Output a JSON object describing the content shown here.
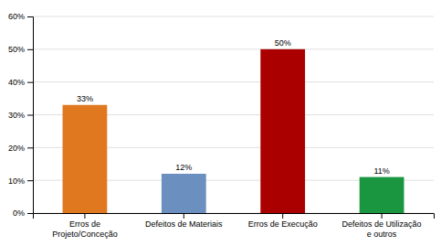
{
  "chart_data": {
    "type": "bar",
    "categories": [
      "Erros de\nProjeto/Conceção",
      "Defeitos de Materiais",
      "Erros de Execução",
      "Defeitos de Utilização\ne outros"
    ],
    "values": [
      33,
      12,
      50,
      11
    ],
    "value_labels": [
      "33%",
      "12%",
      "50%",
      "11%"
    ],
    "data_labels": true,
    "colors": [
      "#E07820",
      "#6B8FBF",
      "#AA0000",
      "#1A9641"
    ],
    "ylim": [
      0,
      60
    ],
    "yticks": [
      {
        "value": 0,
        "label": "0%"
      },
      {
        "value": 10,
        "label": "10%"
      },
      {
        "value": 20,
        "label": "20%"
      },
      {
        "value": 30,
        "label": "30%"
      },
      {
        "value": 40,
        "label": "40%"
      },
      {
        "value": 50,
        "label": "50%"
      },
      {
        "value": 60,
        "label": "60%"
      }
    ],
    "grid": true
  }
}
